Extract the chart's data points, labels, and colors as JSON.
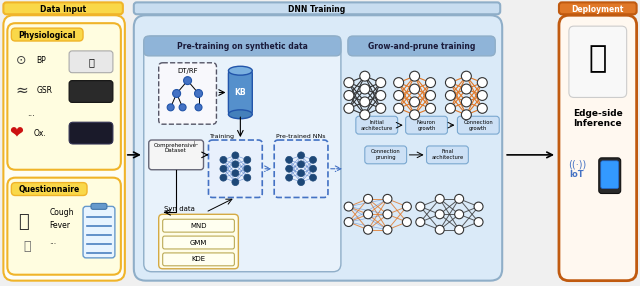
{
  "fig_width": 6.4,
  "fig_height": 2.86,
  "dpi": 100,
  "bg_color": "#f5f5f5",
  "section_labels": [
    "Data Input",
    "DNN Training",
    "Deployment"
  ],
  "physio_label": "Physiological",
  "quest_label": "Questionnaire",
  "pretrain_label": "Pre-training on synthetic data",
  "grow_label": "Grow-and-prune training",
  "dt_rf_label": "DT/RF",
  "kb_label": "KB",
  "training_label": "Training",
  "comp_dataset_label": "Comprehensive\nDataset",
  "pretrained_nn_label": "Pre-trained NNs",
  "syn_data_label": "Syn data",
  "mnd_label": "MND",
  "gam_label": "GMM",
  "kde_label": "KDE",
  "arch_labels": [
    "Initial\narchitecture",
    "Neuron\ngrowth",
    "Connection\ngrowth",
    "Connection\npruning",
    "Final\narchitecture"
  ],
  "edge_label": "Edge-side\nInference",
  "yellow_fill": "#f9d849",
  "yellow_border": "#f0b429",
  "blue_fill": "#c8ddf0",
  "blue_border": "#8faec8",
  "blue_inner": "#b8d0e8",
  "orange_fill": "#e07828",
  "orange_border": "#c05a10",
  "white_fill": "#ffffff",
  "light_yellow": "#fffde0",
  "light_blue_bg": "#daeaf8",
  "node_dark": "#1e4878",
  "node_orange": "#e07828",
  "pretrain_bg": "#e0eef8",
  "pretrain_header": "#8fb4d8"
}
